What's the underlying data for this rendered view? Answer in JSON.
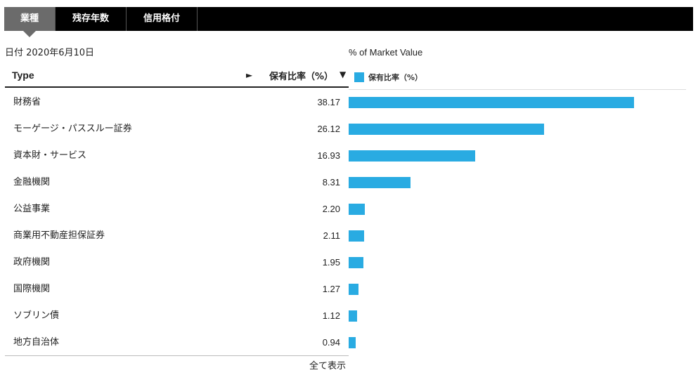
{
  "tabs": [
    {
      "label": "業種",
      "active": true
    },
    {
      "label": "残存年数",
      "active": false
    },
    {
      "label": "信用格付",
      "active": false
    }
  ],
  "date_label": "日付 2020年6月10日",
  "table": {
    "col_type": "Type",
    "col_type_arrow": "►",
    "col_pct": "保有比率（%）",
    "col_pct_sort": "▼"
  },
  "show_all": "全て表示",
  "colors": {
    "bar": "#29abe2"
  },
  "chart_data": {
    "type": "bar",
    "orientation": "horizontal",
    "title": "% of Market Value",
    "legend": "保有比率（%）",
    "legend_position": "top-left",
    "categories": [
      "財務省",
      "モーゲージ・パススルー証券",
      "資本財・サービス",
      "金融機関",
      "公益事業",
      "商業用不動産担保証券",
      "政府機関",
      "国際機関",
      "ソブリン債",
      "地方自治体"
    ],
    "values": [
      38.17,
      26.12,
      16.93,
      8.31,
      2.2,
      2.11,
      1.95,
      1.27,
      1.12,
      0.94
    ],
    "value_labels": [
      "38.17",
      "26.12",
      "16.93",
      "8.31",
      "2.20",
      "2.11",
      "1.95",
      "1.27",
      "1.12",
      "0.94"
    ],
    "xlim": [
      0,
      38.17
    ],
    "grid": false
  }
}
